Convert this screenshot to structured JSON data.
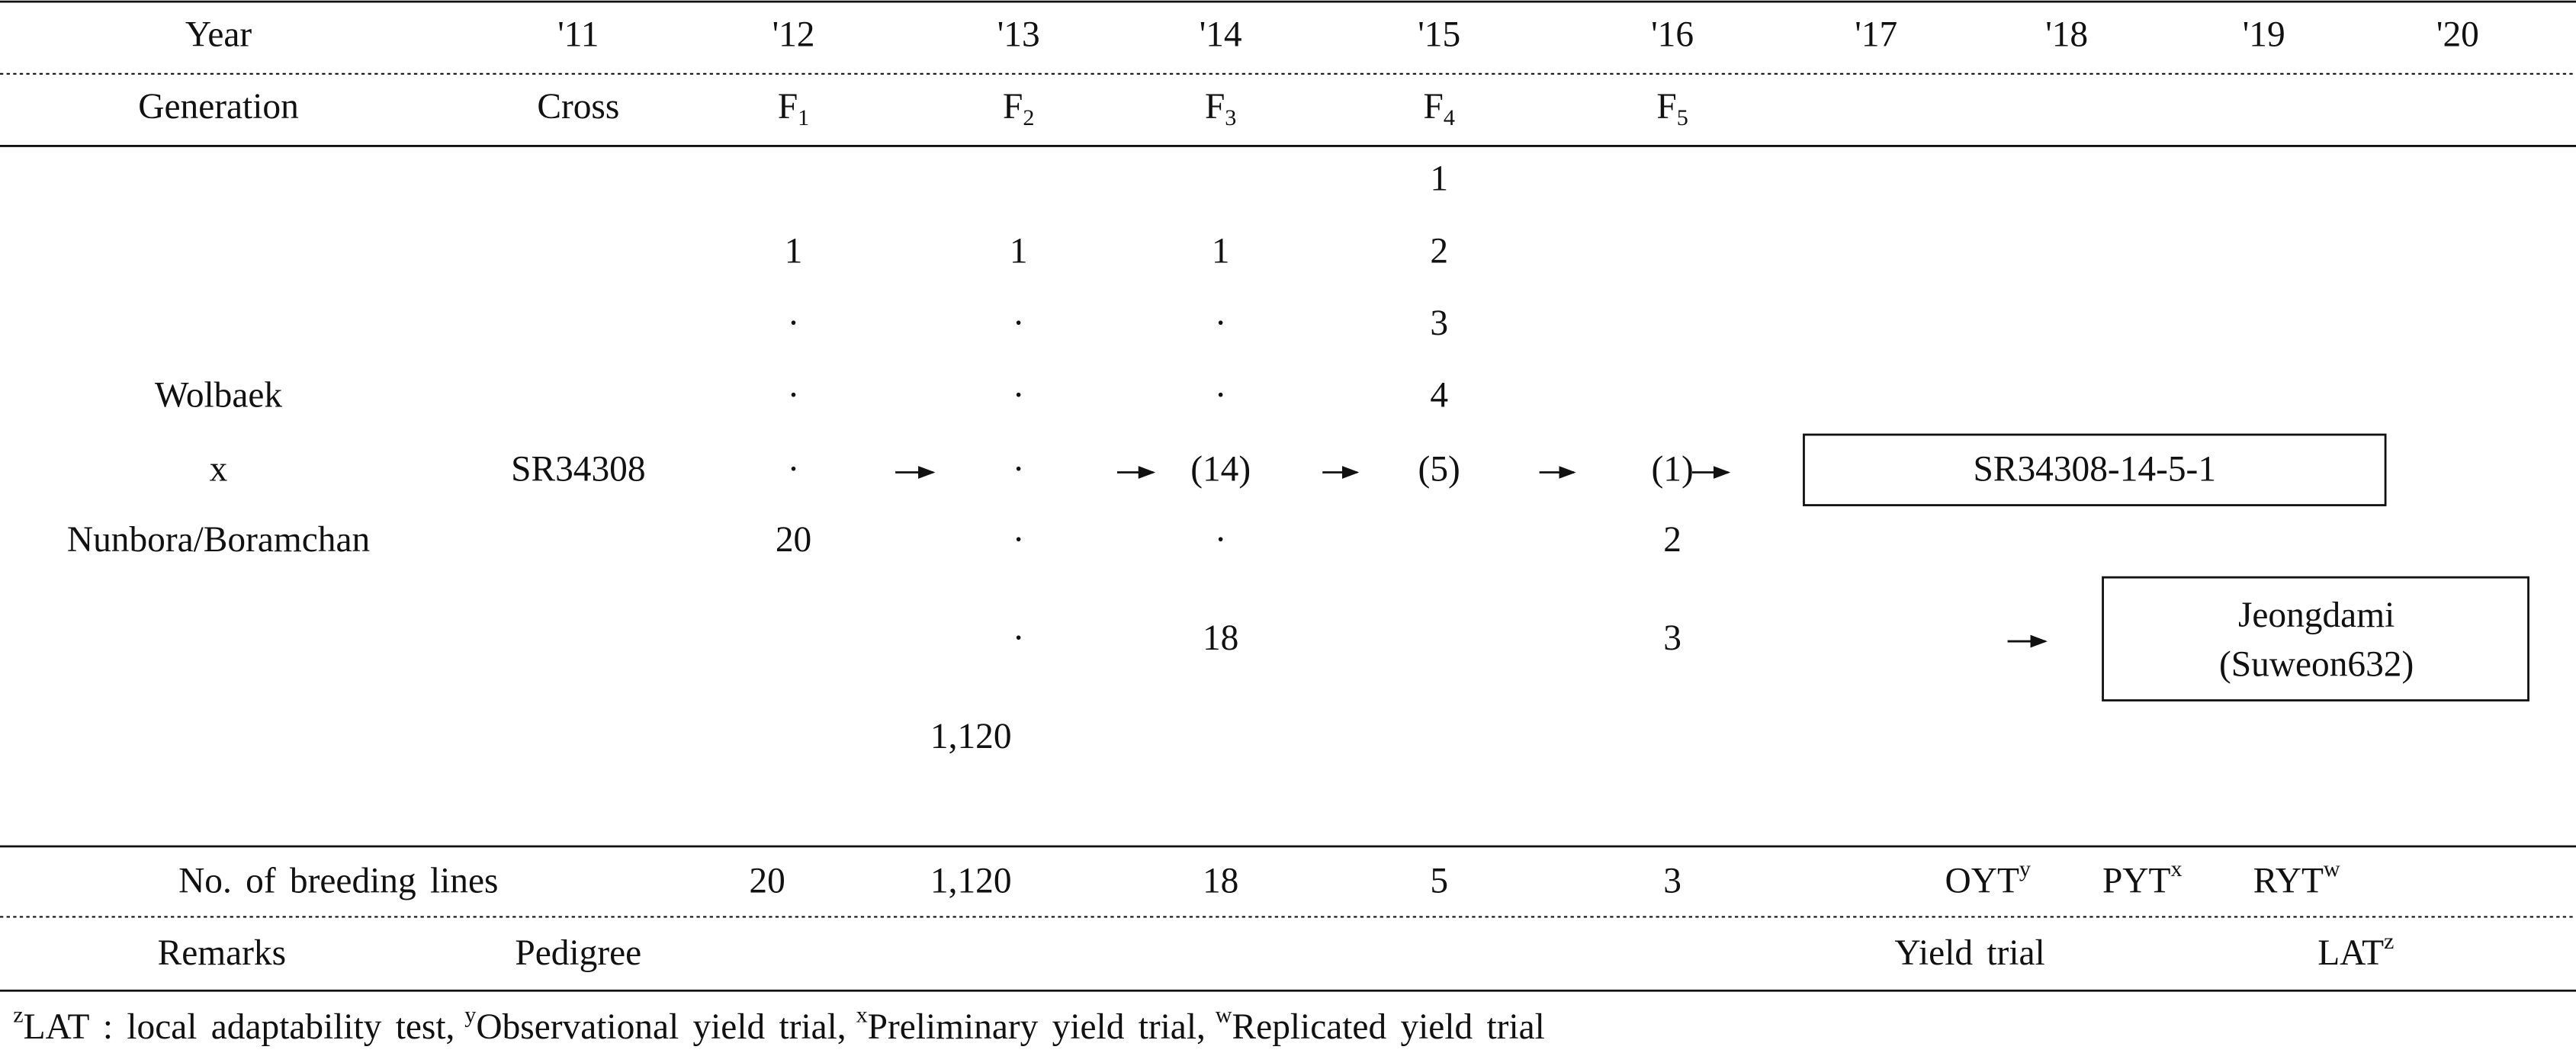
{
  "header": {
    "label": "Year",
    "years": [
      "'11",
      "'12",
      "'13",
      "'14",
      "'15",
      "'16",
      "'17",
      "'18",
      "'19",
      "'20"
    ]
  },
  "generation": {
    "label": "Generation",
    "cross": "Cross",
    "values": [
      {
        "base": "F",
        "sub": "1"
      },
      {
        "base": "F",
        "sub": "2"
      },
      {
        "base": "F",
        "sub": "3"
      },
      {
        "base": "F",
        "sub": "4"
      },
      {
        "base": "F",
        "sub": "5"
      }
    ]
  },
  "cross": {
    "parents": [
      "Wolbaek",
      "x",
      "Nunbora/Boramchan"
    ],
    "code": "SR34308"
  },
  "columns": {
    "f1": [
      "1",
      "·",
      "·",
      "·",
      "20"
    ],
    "f2": [
      "1",
      "·",
      "·",
      "·",
      "·",
      "·",
      "1,120"
    ],
    "f3": [
      "1",
      "·",
      "·",
      "(14)",
      "·",
      "18"
    ],
    "f4": [
      "1",
      "2",
      "3",
      "4",
      "(5)"
    ],
    "f5": [
      "(1)",
      "2",
      "3"
    ]
  },
  "boxes": {
    "line": "SR34308-14-5-1",
    "variety": [
      "Jeongdami",
      "(Suweon632)"
    ]
  },
  "lines": {
    "label": "No. of breeding lines",
    "values": [
      "20",
      "1,120",
      "18",
      "5",
      "3"
    ],
    "trials": [
      {
        "text": "OYT",
        "sup": "y"
      },
      {
        "text": "PYT",
        "sup": "x"
      },
      {
        "text": "RYT",
        "sup": "w"
      }
    ]
  },
  "remarks": {
    "label": "Remarks",
    "pedigree": "Pedigree",
    "yield": "Yield trial",
    "lat": {
      "text": "LAT",
      "sup": "z"
    }
  },
  "footnote": [
    {
      "sup": "z",
      "text": "LAT : local adaptability test,"
    },
    {
      "sup": "y",
      "text": "Observational yield trial,"
    },
    {
      "sup": "x",
      "text": "Preliminary yield trial,"
    },
    {
      "sup": "w",
      "text": "Replicated yield trial"
    }
  ]
}
